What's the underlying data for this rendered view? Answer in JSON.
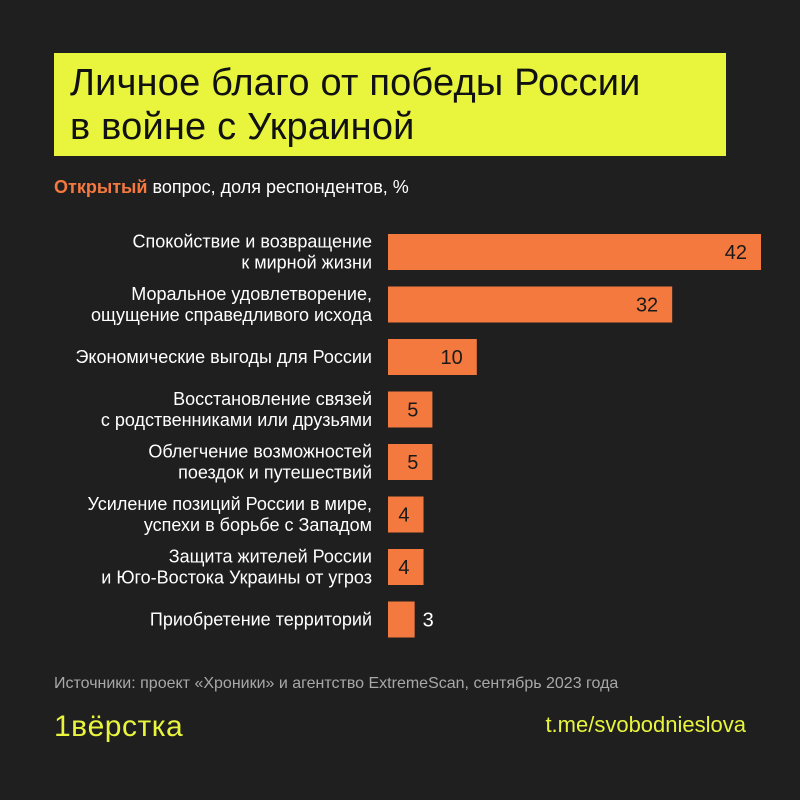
{
  "title": {
    "line1": "Личное благо от победы России",
    "line2": "в войне с Украиной"
  },
  "subtitle": {
    "accent": "Открытый",
    "rest": " вопрос, доля респондентов, %"
  },
  "chart_data": {
    "type": "bar",
    "orientation": "horizontal",
    "title": "Личное благо от победы России в войне с Украиной",
    "subtitle": "Открытый вопрос, доля респондентов, %",
    "categories": [
      [
        "Спокойствие и возвращение",
        "к мирной жизни"
      ],
      [
        "Моральное удовлетворение,",
        "ощущение справедливого исхода"
      ],
      [
        "Экономические выгоды для России"
      ],
      [
        "Восстановление связей",
        "с родственниками или друзьями"
      ],
      [
        "Облегчение возможностей",
        "поездок и путешествий"
      ],
      [
        "Усиление позиций России в мире,",
        "успехи в борьбе с Западом"
      ],
      [
        "Защита жителей России",
        "и Юго-Востока Украины от угроз"
      ],
      [
        "Приобретение территорий"
      ]
    ],
    "values": [
      42,
      32,
      10,
      5,
      5,
      4,
      4,
      3
    ],
    "xlim": [
      0,
      42
    ],
    "bar_color": "#f4793f",
    "grid": false,
    "legend": "none"
  },
  "footer": {
    "source": "Источники: проект «Хроники» и агентство ExtremeScan, сентябрь 2023 года",
    "logo": "1вёрстка",
    "channel": "t.me/svobodnieslova"
  },
  "colors": {
    "background": "#1f1f1f",
    "title_box": "#e8f53c",
    "accent": "#f4793f",
    "logo": "#e8f53c"
  }
}
